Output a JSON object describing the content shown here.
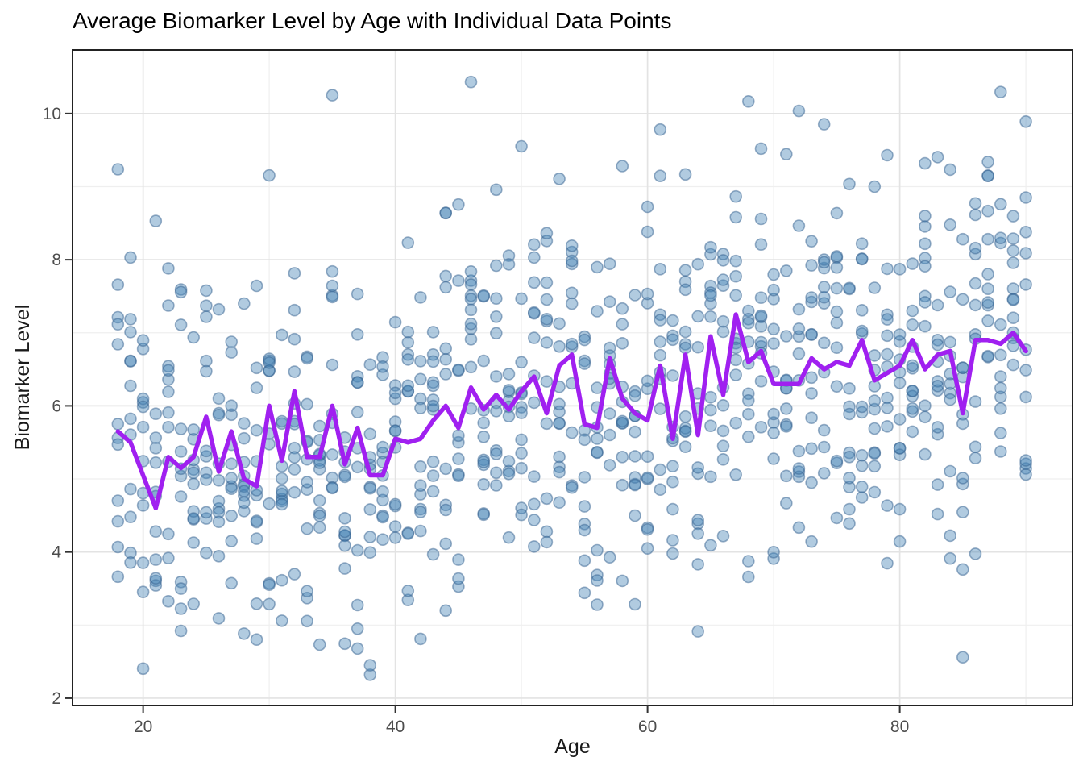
{
  "chart_data": {
    "type": "scatter",
    "title": "Average Biomarker Level by Age with Individual Data Points",
    "xlabel": "Age",
    "ylabel": "Biomarker Level",
    "x_ticks": [
      20,
      40,
      60,
      80
    ],
    "x_minor_gridlines": [
      30,
      50,
      70,
      90
    ],
    "y_ticks": [
      2,
      4,
      6,
      8,
      10
    ],
    "y_minor_gridlines": [
      3,
      5,
      7,
      9
    ],
    "xlim": [
      14.4,
      93.7
    ],
    "ylim": [
      1.9,
      10.87
    ],
    "grid": "on",
    "legend_position": "none",
    "panel_border_color": "#222222",
    "major_grid_color": "#e3e3e3",
    "minor_grid_color": "#efefef",
    "tick_label_color": "#4d4d4d",
    "series": [
      {
        "name": "average-biomarker-line",
        "kind": "line",
        "color": "#A020F0",
        "line_width": 5.5,
        "ages": [
          18,
          19,
          20,
          21,
          22,
          23,
          24,
          25,
          26,
          27,
          28,
          29,
          30,
          31,
          32,
          33,
          34,
          35,
          36,
          37,
          38,
          39,
          40,
          41,
          42,
          43,
          44,
          45,
          46,
          47,
          48,
          49,
          50,
          51,
          52,
          53,
          54,
          55,
          56,
          57,
          58,
          59,
          60,
          61,
          62,
          63,
          64,
          65,
          66,
          67,
          68,
          69,
          70,
          71,
          72,
          73,
          74,
          75,
          76,
          77,
          78,
          79,
          80,
          81,
          82,
          83,
          84,
          85,
          86,
          87,
          88,
          89,
          90
        ],
        "values": [
          5.65,
          5.5,
          5.05,
          4.6,
          5.3,
          5.15,
          5.3,
          5.85,
          5.1,
          5.65,
          5.0,
          4.9,
          6.0,
          5.25,
          6.2,
          5.3,
          5.3,
          6.0,
          5.2,
          5.7,
          5.05,
          5.05,
          5.55,
          5.5,
          5.55,
          5.8,
          6.0,
          5.7,
          6.25,
          5.95,
          6.15,
          5.95,
          6.2,
          6.4,
          5.9,
          6.55,
          6.7,
          5.75,
          5.7,
          6.65,
          6.1,
          5.9,
          5.8,
          6.55,
          5.55,
          6.7,
          5.6,
          6.95,
          6.15,
          7.25,
          6.6,
          6.75,
          6.3,
          6.3,
          6.3,
          6.65,
          6.5,
          6.6,
          6.55,
          6.9,
          6.35,
          6.45,
          6.55,
          6.9,
          6.5,
          6.7,
          6.75,
          5.9,
          6.9,
          6.9,
          6.85,
          7.0,
          6.75
        ]
      },
      {
        "name": "individual-data-points",
        "kind": "scatter-cloud",
        "fill": "#4682B4",
        "fill_opacity": 0.42,
        "stroke": "#35618f",
        "stroke_opacity": 0.5,
        "radius": 7,
        "points_per_age": 12,
        "noise_sd": 1.3,
        "value_min": 2.3,
        "value_max": 10.45,
        "seed": 7
      }
    ]
  }
}
